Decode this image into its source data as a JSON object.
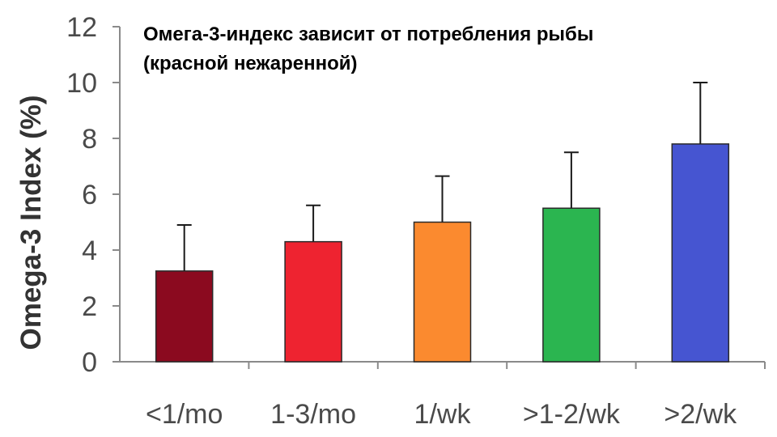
{
  "chart_data": {
    "type": "bar",
    "title_lines": [
      "Омега-3-индекс зависит от потребления рыбы",
      "(красной нежаренной)"
    ],
    "xlabel": "",
    "ylabel": "Omega-3 Index (%)",
    "categories": [
      "<1/mo",
      "1-3/mo",
      "1/wk",
      ">1-2/wk",
      ">2/wk"
    ],
    "values": [
      3.25,
      4.3,
      5.0,
      5.5,
      7.8
    ],
    "error_upper": [
      4.9,
      5.6,
      6.65,
      7.5,
      10.0
    ],
    "colors": [
      "#8b0a1f",
      "#ee2330",
      "#fb8a2f",
      "#2bb550",
      "#4655d1"
    ],
    "ylim": [
      0,
      12
    ],
    "yticks": [
      0,
      2,
      4,
      6,
      8,
      10,
      12
    ],
    "grid": false,
    "legend": "none"
  }
}
